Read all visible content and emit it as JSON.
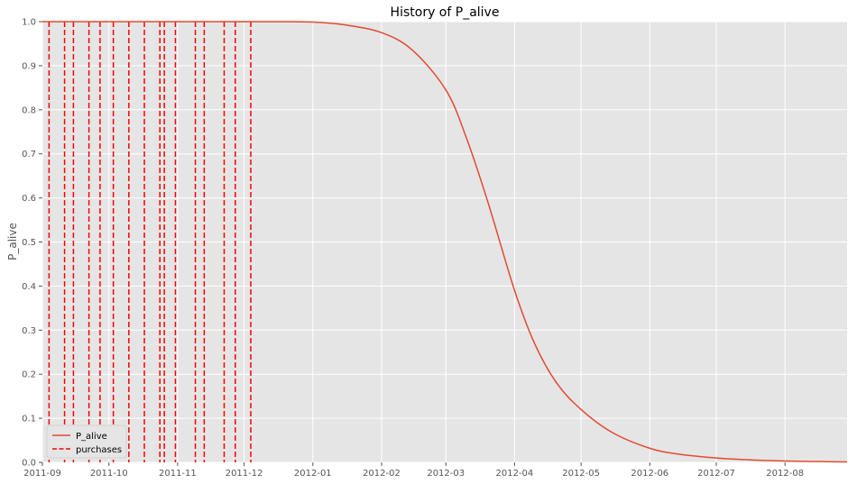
{
  "chart_data": {
    "type": "line",
    "title": "History of P_alive",
    "xlabel": "",
    "ylabel": "P_alive",
    "xlim": [
      "2011-09-01",
      "2012-08-29"
    ],
    "ylim": [
      0,
      1
    ],
    "grid": true,
    "legend_position": "bottom-left",
    "x_ticks": [
      "2011-09-01",
      "2011-10-01",
      "2011-11-01",
      "2011-12-01",
      "2012-01-01",
      "2012-02-01",
      "2012-03-01",
      "2012-04-01",
      "2012-05-01",
      "2012-06-01",
      "2012-07-01",
      "2012-08-01"
    ],
    "x_tick_labels": [
      "2011-09",
      "2011-10",
      "2011-11",
      "2011-12",
      "2012-01",
      "2012-02",
      "2012-03",
      "2012-04",
      "2012-05",
      "2012-06",
      "2012-07",
      "2012-08"
    ],
    "y_ticks": [
      0.0,
      0.1,
      0.2,
      0.3,
      0.4,
      0.5,
      0.6,
      0.7,
      0.8,
      0.9,
      1.0
    ],
    "y_tick_labels": [
      "0.0",
      "0.1",
      "0.2",
      "0.3",
      "0.4",
      "0.5",
      "0.6",
      "0.7",
      "0.8",
      "0.9",
      "1.0"
    ],
    "series": [
      {
        "name": "P_alive",
        "color": "#e24a33",
        "style": "solid",
        "x": [
          "2011-09-01",
          "2011-12-05",
          "2011-12-15",
          "2012-01-01",
          "2012-01-15",
          "2012-02-01",
          "2012-02-15",
          "2012-03-01",
          "2012-03-10",
          "2012-03-20",
          "2012-04-01",
          "2012-04-10",
          "2012-04-20",
          "2012-05-01",
          "2012-05-15",
          "2012-06-01",
          "2012-06-15",
          "2012-07-01",
          "2012-07-15",
          "2012-08-01",
          "2012-08-29"
        ],
        "y": [
          1.0,
          1.0,
          1.0,
          0.999,
          0.993,
          0.975,
          0.935,
          0.845,
          0.74,
          0.59,
          0.39,
          0.27,
          0.18,
          0.12,
          0.068,
          0.032,
          0.018,
          0.01,
          0.006,
          0.003,
          0.001
        ]
      }
    ],
    "purchases": {
      "name": "purchases",
      "color": "#ff0000",
      "style": "dashed",
      "dates": [
        "2011-09-04",
        "2011-09-11",
        "2011-09-15",
        "2011-09-22",
        "2011-09-27",
        "2011-10-03",
        "2011-10-10",
        "2011-10-17",
        "2011-10-24",
        "2011-10-26",
        "2011-10-31",
        "2011-11-09",
        "2011-11-13",
        "2011-11-22",
        "2011-11-27",
        "2011-12-04"
      ]
    }
  }
}
